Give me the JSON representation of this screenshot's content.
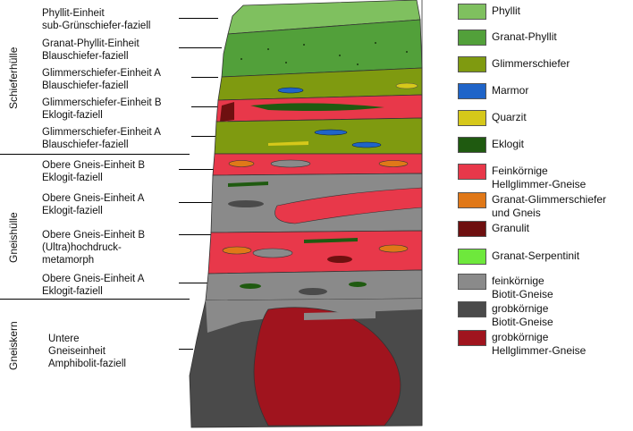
{
  "zones": [
    {
      "label": "Schieferhülle"
    },
    {
      "label": "Gneishülle"
    },
    {
      "label": "Gneiskern"
    }
  ],
  "units": [
    {
      "lines": [
        "Phyllit-Einheit",
        "sub-Grünschiefer-faziell"
      ]
    },
    {
      "lines": [
        "Granat-Phyllit-Einheit",
        "Blauschiefer-faziell"
      ]
    },
    {
      "lines": [
        "Glimmerschiefer-Einheit A",
        "Blauschiefer-faziell"
      ]
    },
    {
      "lines": [
        "Glimmerschiefer-Einheit B",
        "Eklogit-faziell"
      ]
    },
    {
      "lines": [
        "Glimmerschiefer-Einheit A",
        "Blauschiefer-faziell"
      ]
    },
    {
      "lines": [
        "Obere Gneis-Einheit B",
        "Eklogit-faziell"
      ]
    },
    {
      "lines": [
        "Obere Gneis-Einheit A",
        "Eklogit-faziell"
      ]
    },
    {
      "lines": [
        "Obere Gneis-Einheit B",
        "(Ultra)hochdruck-",
        "metamorph"
      ]
    },
    {
      "lines": [
        "Obere Gneis-Einheit A",
        "Eklogit-faziell"
      ]
    },
    {
      "lines": [
        "Untere",
        "Gneiseinheit",
        "Amphibolit-faziell"
      ]
    }
  ],
  "legend": [
    {
      "lines": [
        "Phyllit"
      ],
      "color": "#7fc05f"
    },
    {
      "lines": [
        "Granat-Phyllit"
      ],
      "color": "#52a03a"
    },
    {
      "lines": [
        "Glimmerschiefer"
      ],
      "color": "#7f9a10"
    },
    {
      "lines": [
        "Marmor"
      ],
      "color": "#1f64c8"
    },
    {
      "lines": [
        "Quarzit"
      ],
      "color": "#d6c81a"
    },
    {
      "lines": [
        "Eklogit"
      ],
      "color": "#1f5a10"
    },
    {
      "lines": [
        "Feinkörnige",
        "Hellglimmer-Gneise"
      ],
      "color": "#e8384a"
    },
    {
      "lines": [
        "Granat-Glimmerschiefer",
        "und Gneis"
      ],
      "color": "#e07818"
    },
    {
      "lines": [
        "Granulit"
      ],
      "color": "#6e1010"
    },
    {
      "lines": [
        "Granat-Serpentinit"
      ],
      "color": "#6ee83c"
    },
    {
      "lines": [
        "feinkörnige",
        "Biotit-Gneise"
      ],
      "color": "#8a8a8a"
    },
    {
      "lines": [
        "grobkörnige",
        "Biotit-Gneise"
      ],
      "color": "#4a4a4a"
    },
    {
      "lines": [
        "grobkörnige",
        "Hellglimmer-Gneise"
      ],
      "color": "#a0141e"
    }
  ]
}
